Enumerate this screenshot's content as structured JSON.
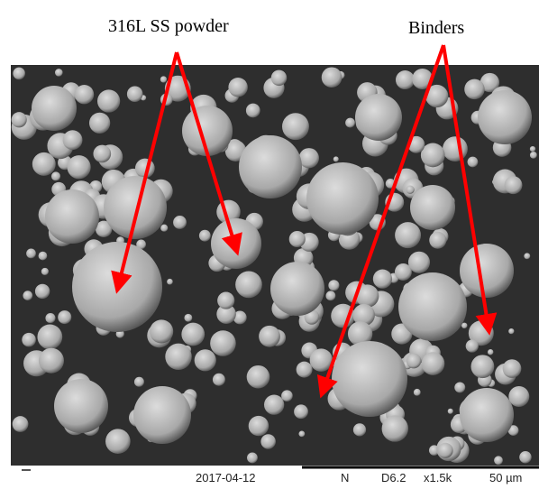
{
  "annotations": {
    "powder": "316L SS powder",
    "binders": "Binders"
  },
  "footer": {
    "date": "2017-04-12",
    "mode": "N",
    "distance": "D6.2",
    "magnification": "x1.5k",
    "scale": "50 µm"
  }
}
